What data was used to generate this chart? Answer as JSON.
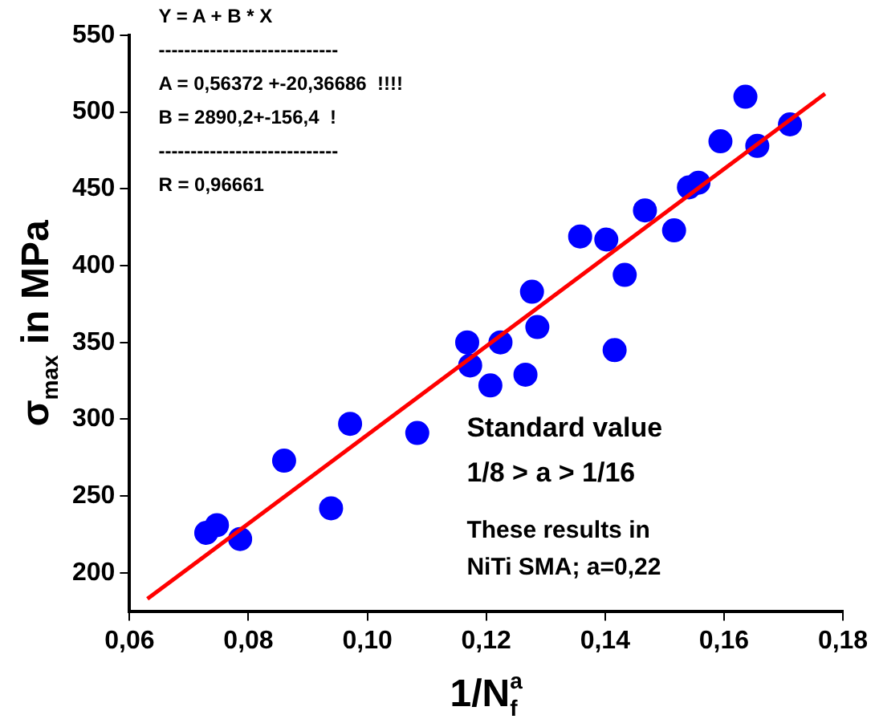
{
  "chart_data": {
    "type": "scatter",
    "xlabel": "1/N$_{f}$$^{a}$",
    "ylabel": "σ$_{max}$ in MPa",
    "xlim": [
      0.06,
      0.18
    ],
    "ylim": [
      175,
      550
    ],
    "xticks": [
      {
        "value": 0.06,
        "label": "0,06"
      },
      {
        "value": 0.08,
        "label": "0,08"
      },
      {
        "value": 0.1,
        "label": "0,10"
      },
      {
        "value": 0.12,
        "label": "0,12"
      },
      {
        "value": 0.14,
        "label": "0,14"
      },
      {
        "value": 0.16,
        "label": "0,16"
      },
      {
        "value": 0.18,
        "label": "0,18"
      }
    ],
    "yticks": [
      200,
      250,
      300,
      350,
      400,
      450,
      500,
      550
    ],
    "grid": false,
    "legend": false,
    "series": [
      {
        "marker": "circle",
        "color": "#0000ff",
        "x": [
          0.0729,
          0.0747,
          0.0786,
          0.086,
          0.0939,
          0.0971,
          0.1084,
          0.1168,
          0.1173,
          0.1207,
          0.1224,
          0.1266,
          0.1277,
          0.1286,
          0.1358,
          0.1402,
          0.1416,
          0.1433,
          0.1467,
          0.1516,
          0.1541,
          0.1557,
          0.1594,
          0.1636,
          0.1656,
          0.1711
        ],
        "values": [
          226,
          231,
          222,
          273,
          242,
          297,
          291,
          350,
          335,
          322,
          350,
          329,
          383,
          360,
          419,
          417,
          345,
          394,
          436,
          423,
          451,
          454,
          481,
          510,
          478,
          492
        ]
      },
      {
        "type": "line",
        "marker": "none",
        "color": "#ff0000",
        "x": [
          0.063,
          0.177
        ],
        "values": [
          183,
          512
        ]
      }
    ],
    "annotations": [
      "Y = A + B * X",
      "----------------------------",
      "A = 0,56372 +-20,36686  !!!!",
      "B = 2890,2+-156,4  !",
      "----------------------------",
      "R = 0,96661",
      "Standard value",
      "1/8 > a > 1/16",
      "These results in",
      "NiTi SMA; a=0,22"
    ]
  }
}
